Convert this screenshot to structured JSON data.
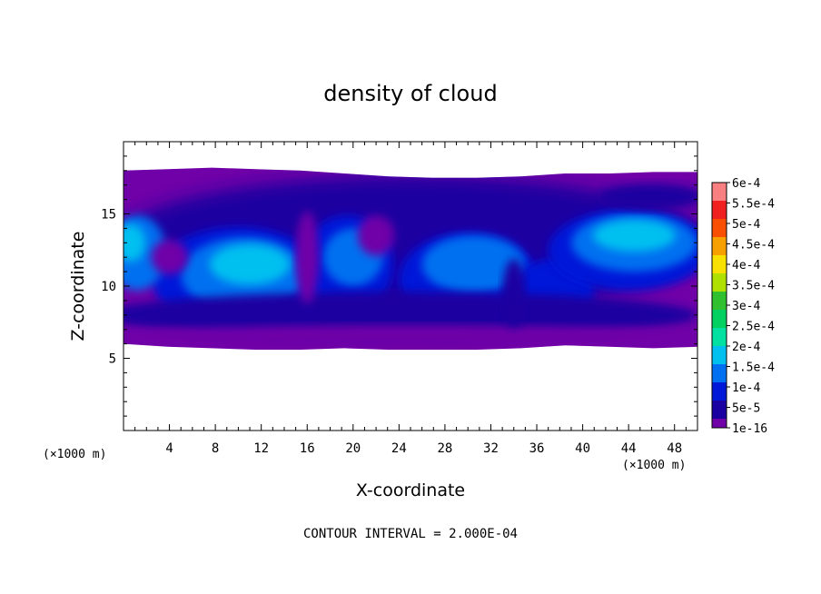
{
  "chart_data": {
    "type": "heatmap",
    "title": "density of cloud",
    "xlabel": "X-coordinate",
    "ylabel": "Z-coordinate",
    "x_unit": "(×1000 m)",
    "y_unit": "(×1000 m)",
    "xlim": [
      0,
      50
    ],
    "ylim": [
      0,
      20
    ],
    "x_ticks": [
      4,
      8,
      12,
      16,
      20,
      24,
      28,
      32,
      36,
      40,
      44,
      48
    ],
    "y_ticks": [
      5,
      10,
      15
    ],
    "colorbar": {
      "labels": [
        "1e-16",
        "5e-5",
        "1e-4",
        "1.5e-4",
        "2e-4",
        "2.5e-4",
        "3e-4",
        "3.5e-4",
        "4e-4",
        "4.5e-4",
        "5e-4",
        "5.5e-4",
        "6e-4"
      ],
      "colors": [
        "#7000a8",
        "#1a00a0",
        "#0018d8",
        "#0070f0",
        "#00c0f0",
        "#00e0a0",
        "#00d060",
        "#30c030",
        "#b0e000",
        "#f8e000",
        "#f8a000",
        "#f85000",
        "#f02020",
        "#f88080"
      ]
    },
    "cloud_top_km": [
      18.0,
      18.1,
      18.2,
      18.1,
      18.0,
      17.8,
      17.6,
      17.5,
      17.5,
      17.6,
      17.8,
      17.8,
      17.9,
      17.9
    ],
    "cloud_base_km": [
      6.0,
      5.8,
      5.7,
      5.6,
      5.6,
      5.7,
      5.6,
      5.6,
      5.6,
      5.7,
      5.9,
      5.8,
      5.7,
      5.8
    ],
    "contour_interval_note": "CONTOUR INTERVAL = 2.000E-04"
  }
}
